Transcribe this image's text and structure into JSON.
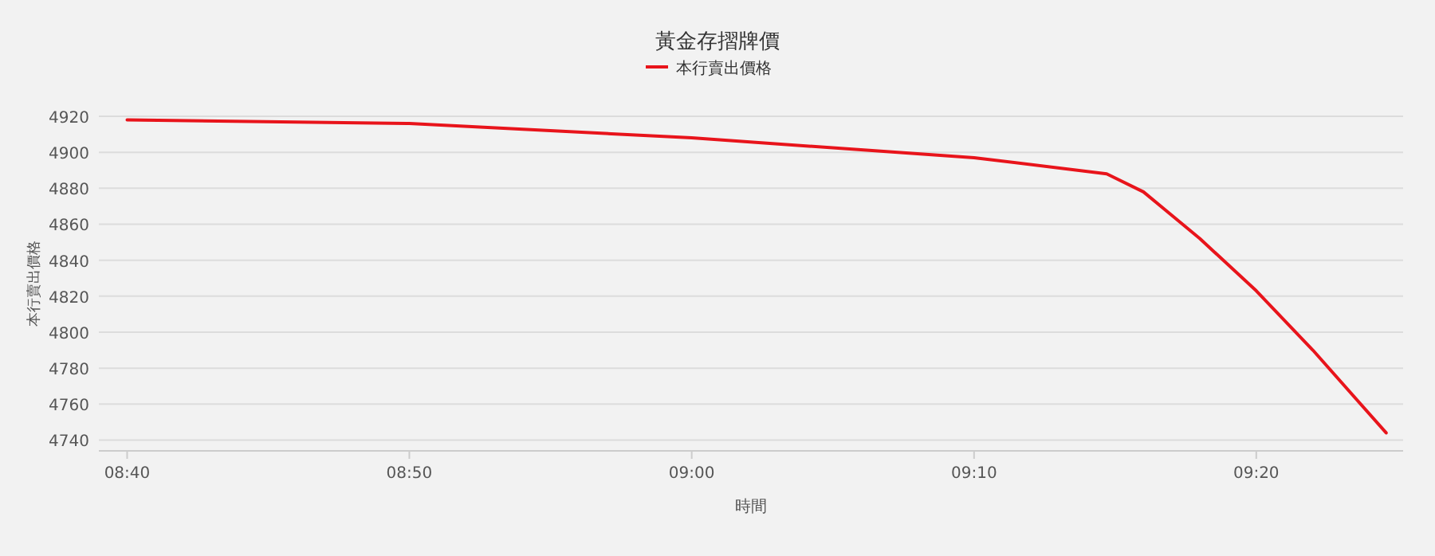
{
  "chart_data": {
    "type": "line",
    "title": "黃金存摺牌價",
    "xlabel": "時間",
    "ylabel": "本行賣出價格",
    "x": [
      8.6667,
      8.8333,
      9.0,
      9.1667,
      9.245,
      9.2667,
      9.3,
      9.3333,
      9.3667,
      9.41
    ],
    "series": [
      {
        "name": "本行賣出價格",
        "color": "#e8141b",
        "values": [
          4918,
          4916,
          4908,
          4897,
          4888,
          4878,
          4852,
          4823,
          4790,
          4744
        ]
      }
    ],
    "xlim": [
      8.65,
      9.42
    ],
    "xticks": [
      {
        "value": 8.6667,
        "label": "08:40"
      },
      {
        "value": 8.8333,
        "label": "08:50"
      },
      {
        "value": 9.0,
        "label": "09:00"
      },
      {
        "value": 9.1667,
        "label": "09:10"
      },
      {
        "value": 9.3333,
        "label": "09:20"
      }
    ],
    "ylim": [
      4734,
      4920
    ],
    "yticks": [
      4740,
      4760,
      4780,
      4800,
      4820,
      4840,
      4860,
      4880,
      4900,
      4920
    ],
    "grid": "y",
    "legend": "top",
    "marker": "none",
    "line_style": "solid"
  }
}
